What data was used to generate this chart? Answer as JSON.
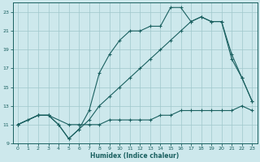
{
  "xlabel": "Humidex (Indice chaleur)",
  "xlim": [
    -0.5,
    23.5
  ],
  "ylim": [
    9,
    24
  ],
  "yticks": [
    9,
    11,
    13,
    15,
    17,
    19,
    21,
    23
  ],
  "xticks": [
    0,
    1,
    2,
    3,
    4,
    5,
    6,
    7,
    8,
    9,
    10,
    11,
    12,
    13,
    14,
    15,
    16,
    17,
    18,
    19,
    20,
    21,
    22,
    23
  ],
  "bg_color": "#cde8ec",
  "grid_color": "#a0c8cc",
  "line_color": "#1a6060",
  "line1_x": [
    0,
    1,
    2,
    3,
    4,
    5,
    6,
    7,
    8,
    9,
    10,
    11,
    12,
    13,
    14,
    15,
    16,
    17,
    18,
    19,
    20,
    21,
    22,
    23
  ],
  "line1_y": [
    11,
    11.5,
    12,
    12,
    11,
    9.5,
    10.5,
    12.5,
    16.5,
    18.5,
    20,
    21,
    21,
    21.5,
    21.5,
    23.5,
    23.5,
    22,
    22.5,
    22,
    22,
    18,
    16,
    13.5
  ],
  "line2_x": [
    0,
    2,
    3,
    4,
    5,
    6,
    7,
    8,
    9,
    10,
    11,
    12,
    13,
    14,
    15,
    16,
    17,
    18,
    19,
    20,
    21,
    22,
    23
  ],
  "line2_y": [
    11,
    12,
    12,
    11,
    9.5,
    10.5,
    11.5,
    13,
    14,
    15,
    16,
    17,
    18,
    19,
    20,
    21,
    22,
    22.5,
    22,
    22,
    18.5,
    16,
    13.5
  ],
  "line3_x": [
    0,
    2,
    3,
    5,
    6,
    7,
    8,
    9,
    10,
    11,
    12,
    13,
    14,
    15,
    16,
    17,
    18,
    19,
    20,
    21,
    22,
    23
  ],
  "line3_y": [
    11,
    12,
    12,
    11,
    11,
    11,
    11,
    11.5,
    11.5,
    11.5,
    11.5,
    11.5,
    12,
    12,
    12.5,
    12.5,
    12.5,
    12.5,
    12.5,
    12.5,
    13,
    12.5
  ]
}
